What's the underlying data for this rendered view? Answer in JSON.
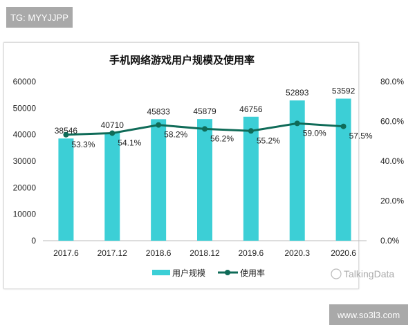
{
  "watermark_top": "TG: MYYJJPP",
  "watermark_bottom": "www.so3l3.com",
  "logo_text": "TalkingData",
  "chart_data": {
    "type": "bar",
    "title": "手机网络游戏用户规模及使用率",
    "categories": [
      "2017.6",
      "2017.12",
      "2018.6",
      "2018.12",
      "2019.6",
      "2020.3",
      "2020.6"
    ],
    "series": [
      {
        "name": "用户规模",
        "type": "bar",
        "axis": "left",
        "color": "#3ccfd6",
        "values": [
          38546,
          40710,
          45833,
          45879,
          46756,
          52893,
          53592
        ],
        "labels": [
          "38546",
          "40710",
          "45833",
          "45879",
          "46756",
          "52893",
          "53592"
        ]
      },
      {
        "name": "使用率",
        "type": "line",
        "axis": "right",
        "color": "#0f6b58",
        "values": [
          53.3,
          54.1,
          58.2,
          56.2,
          55.2,
          59.0,
          57.5
        ],
        "labels": [
          "53.3%",
          "54.1%",
          "58.2%",
          "56.2%",
          "55.2%",
          "59.0%",
          "57.5%"
        ]
      }
    ],
    "ylim": [
      0,
      60000
    ],
    "y2lim": [
      0,
      80
    ],
    "yticks": [
      "0",
      "10000",
      "20000",
      "30000",
      "40000",
      "50000",
      "60000"
    ],
    "y2ticks": [
      "0.0%",
      "20.0%",
      "40.0%",
      "60.0%",
      "80.0%"
    ],
    "grid": false,
    "legend": "bottom-center"
  }
}
